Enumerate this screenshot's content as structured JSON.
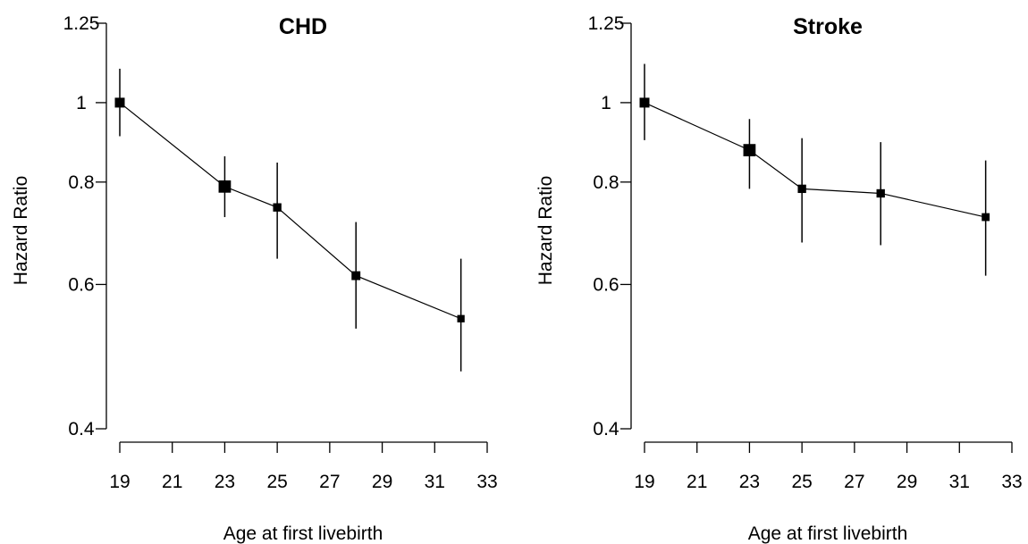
{
  "chart_data": [
    {
      "type": "line",
      "title": "CHD",
      "xlabel": "Age at first livebirth",
      "ylabel": "Hazard Ratio",
      "y_scale": "log",
      "xlim": [
        19,
        33
      ],
      "ylim": [
        0.4,
        1.25
      ],
      "x_ticks": [
        "19",
        "21",
        "23",
        "25",
        "27",
        "29",
        "31",
        "33"
      ],
      "y_ticks": [
        "0.4",
        "0.6",
        "0.8",
        "1",
        "1.25"
      ],
      "grid": false,
      "series": [
        {
          "x": [
            19,
            23,
            25,
            28,
            32
          ],
          "y": [
            1.0,
            0.79,
            0.745,
            0.615,
            0.545
          ],
          "ci_low": [
            0.91,
            0.725,
            0.645,
            0.53,
            0.47
          ],
          "ci_high": [
            1.1,
            0.86,
            0.845,
            0.715,
            0.645
          ],
          "weight": [
            1.0,
            1.25,
            0.85,
            0.9,
            0.75
          ]
        }
      ]
    },
    {
      "type": "line",
      "title": "Stroke",
      "xlabel": "Age at first livebirth",
      "ylabel": "Hazard Ratio",
      "y_scale": "log",
      "xlim": [
        19,
        33
      ],
      "ylim": [
        0.4,
        1.25
      ],
      "x_ticks": [
        "19",
        "21",
        "23",
        "25",
        "27",
        "29",
        "31",
        "33"
      ],
      "y_ticks": [
        "0.4",
        "0.6",
        "0.8",
        "1",
        "1.25"
      ],
      "grid": false,
      "series": [
        {
          "x": [
            19,
            23,
            25,
            28,
            32
          ],
          "y": [
            1.0,
            0.875,
            0.785,
            0.775,
            0.725
          ],
          "ci_low": [
            0.9,
            0.785,
            0.675,
            0.67,
            0.615
          ],
          "ci_high": [
            1.115,
            0.955,
            0.905,
            0.895,
            0.85
          ],
          "weight": [
            1.0,
            1.25,
            0.85,
            0.85,
            0.8
          ]
        }
      ]
    }
  ]
}
